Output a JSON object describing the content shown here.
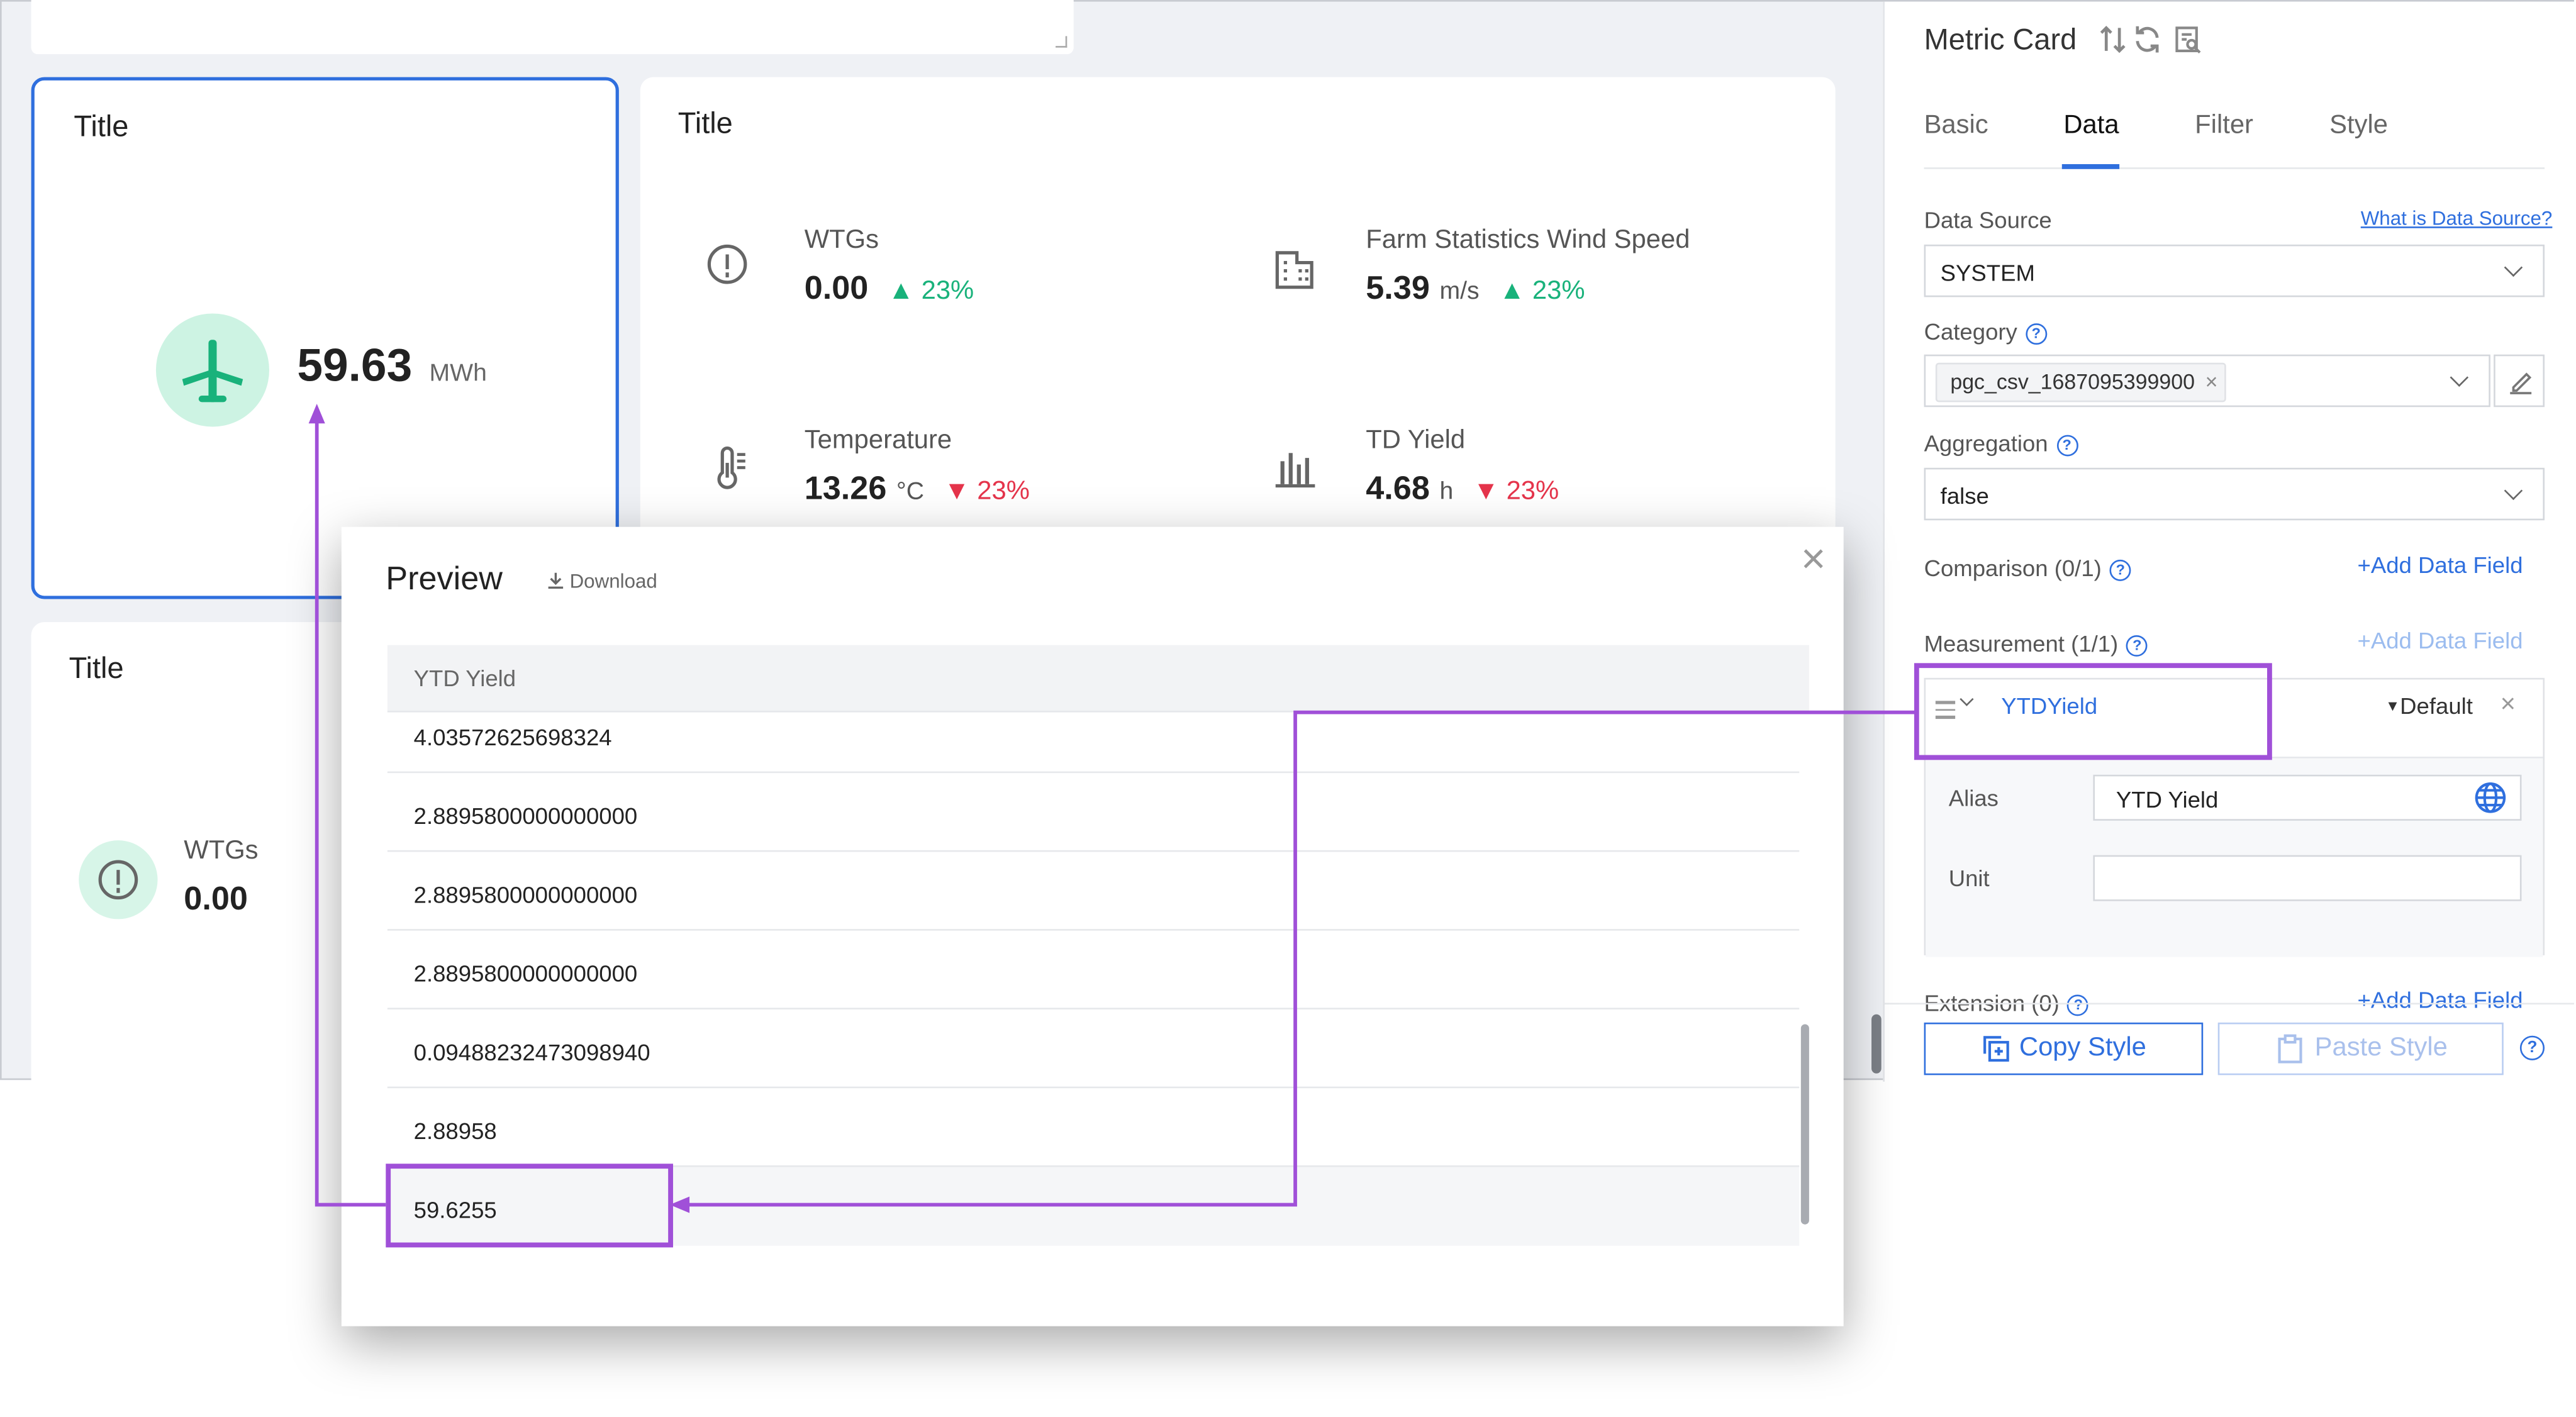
{
  "dashboard": {
    "card1": {
      "title": "Title",
      "value": "59.63",
      "unit": "MWh"
    },
    "card2": {
      "title": "Title",
      "metrics": [
        {
          "name": "WTGs",
          "value": "0.00",
          "unit": "",
          "trend": "▲ 23%",
          "dir": "up",
          "icon": "alert-circle-icon"
        },
        {
          "name": "Farm Statistics Wind Speed",
          "value": "5.39",
          "unit": "m/s",
          "trend": "▲ 23%",
          "dir": "up",
          "icon": "building-icon"
        },
        {
          "name": "Temperature",
          "value": "13.26",
          "unit": "°C",
          "trend": "▼ 23%",
          "dir": "down",
          "icon": "thermometer-icon"
        },
        {
          "name": "TD Yield",
          "value": "4.68",
          "unit": "h",
          "trend": "▼ 23%",
          "dir": "down",
          "icon": "bar-chart-icon"
        }
      ]
    },
    "card3": {
      "title": "Title",
      "metric_name": "WTGs",
      "metric_value": "0.00"
    }
  },
  "panel": {
    "title": "Metric Card",
    "tabs": [
      "Basic",
      "Data",
      "Filter",
      "Style"
    ],
    "active_tab": "Data",
    "data_source_label": "Data Source",
    "data_source_link": "What is Data Source?",
    "data_source_value": "SYSTEM",
    "category_label": "Category",
    "category_tag": "pgc_csv_1687095399900",
    "aggregation_label": "Aggregation",
    "aggregation_value": "false",
    "comparison_label": "Comparison (0/1)",
    "add_field": "+Add Data Field",
    "measurement_label": "Measurement (1/1)",
    "measurement_field": "YTDYield",
    "measurement_default": "Default",
    "alias_label": "Alias",
    "alias_value": "YTD Yield",
    "unit_label": "Unit",
    "unit_value": "",
    "extension_label": "Extension (0)",
    "copy_style": "Copy Style",
    "paste_style": "Paste Style"
  },
  "preview": {
    "title": "Preview",
    "download": "Download",
    "column": "YTD Yield",
    "rows": [
      "4.03572625698324",
      "2.8895800000000000",
      "2.8895800000000000",
      "2.8895800000000000",
      "0.09488232473098940",
      "2.88958",
      "59.6255"
    ]
  },
  "colors": {
    "accent": "#2f6fde",
    "annotation": "#a050d8",
    "up": "#19b27b",
    "down": "#e5344b",
    "icon_bg": "#cdf3e3",
    "icon_fg": "#19b27b"
  }
}
